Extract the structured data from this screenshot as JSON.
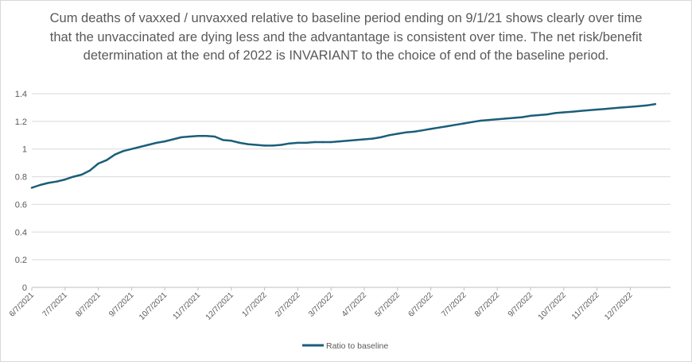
{
  "chart_data": {
    "type": "line",
    "title": "Cum deaths of vaxxed / unvaxxed relative to baseline period ending on 9/1/21 shows clearly over time that the unvaccinated are dying less and the advantantage is consistent over time. The net risk/benefit determination at the end of 2022 is INVARIANT to the choice of end of the baseline period.",
    "xlabel": "",
    "ylabel": "",
    "ylim": [
      0,
      1.4
    ],
    "y_ticks": [
      "0",
      "0.2",
      "0.4",
      "0.6",
      "0.8",
      "1",
      "1.2",
      "1.4"
    ],
    "x_ticks": [
      "6/7/2021",
      "7/7/2021",
      "8/7/2021",
      "9/7/2021",
      "10/7/2021",
      "11/7/2021",
      "12/7/2021",
      "1/7/2022",
      "2/7/2022",
      "3/7/2022",
      "4/7/2022",
      "5/7/2022",
      "6/7/2022",
      "7/7/2022",
      "8/7/2022",
      "9/7/2022",
      "10/7/2022",
      "11/7/2022",
      "12/7/2022"
    ],
    "grid": true,
    "legend": "bottom",
    "series": [
      {
        "name": "Ratio to baseline",
        "color": "#1b5e7a",
        "x_month_offset": [
          0,
          0.25,
          0.5,
          0.75,
          1.0,
          1.25,
          1.5,
          1.75,
          2.0,
          2.25,
          2.5,
          2.75,
          3.0,
          3.25,
          3.5,
          3.75,
          4.0,
          4.25,
          4.5,
          4.75,
          5.0,
          5.25,
          5.5,
          5.75,
          6.0,
          6.25,
          6.5,
          6.75,
          7.0,
          7.25,
          7.5,
          7.75,
          8.0,
          8.25,
          8.5,
          8.75,
          9.0,
          9.25,
          9.5,
          9.75,
          10.0,
          10.25,
          10.5,
          10.75,
          11.0,
          11.25,
          11.5,
          11.75,
          12.0,
          12.25,
          12.5,
          12.75,
          13.0,
          13.25,
          13.5,
          13.75,
          14.0,
          14.25,
          14.5,
          14.75,
          15.0,
          15.25,
          15.5,
          15.75,
          16.0,
          16.25,
          16.5,
          16.75,
          17.0,
          17.25,
          17.5,
          17.75,
          18.0,
          18.25,
          18.5,
          18.75
        ],
        "values": [
          0.72,
          0.74,
          0.755,
          0.765,
          0.78,
          0.8,
          0.815,
          0.845,
          0.895,
          0.92,
          0.96,
          0.985,
          1.0,
          1.015,
          1.03,
          1.045,
          1.055,
          1.07,
          1.085,
          1.09,
          1.095,
          1.095,
          1.09,
          1.065,
          1.06,
          1.045,
          1.035,
          1.03,
          1.025,
          1.025,
          1.03,
          1.04,
          1.045,
          1.045,
          1.05,
          1.05,
          1.05,
          1.055,
          1.06,
          1.065,
          1.07,
          1.075,
          1.085,
          1.1,
          1.11,
          1.12,
          1.125,
          1.135,
          1.145,
          1.155,
          1.165,
          1.175,
          1.185,
          1.195,
          1.205,
          1.21,
          1.215,
          1.22,
          1.225,
          1.23,
          1.24,
          1.245,
          1.25,
          1.26,
          1.265,
          1.27,
          1.275,
          1.28,
          1.285,
          1.29,
          1.295,
          1.3,
          1.305,
          1.31,
          1.315,
          1.325
        ]
      }
    ]
  }
}
